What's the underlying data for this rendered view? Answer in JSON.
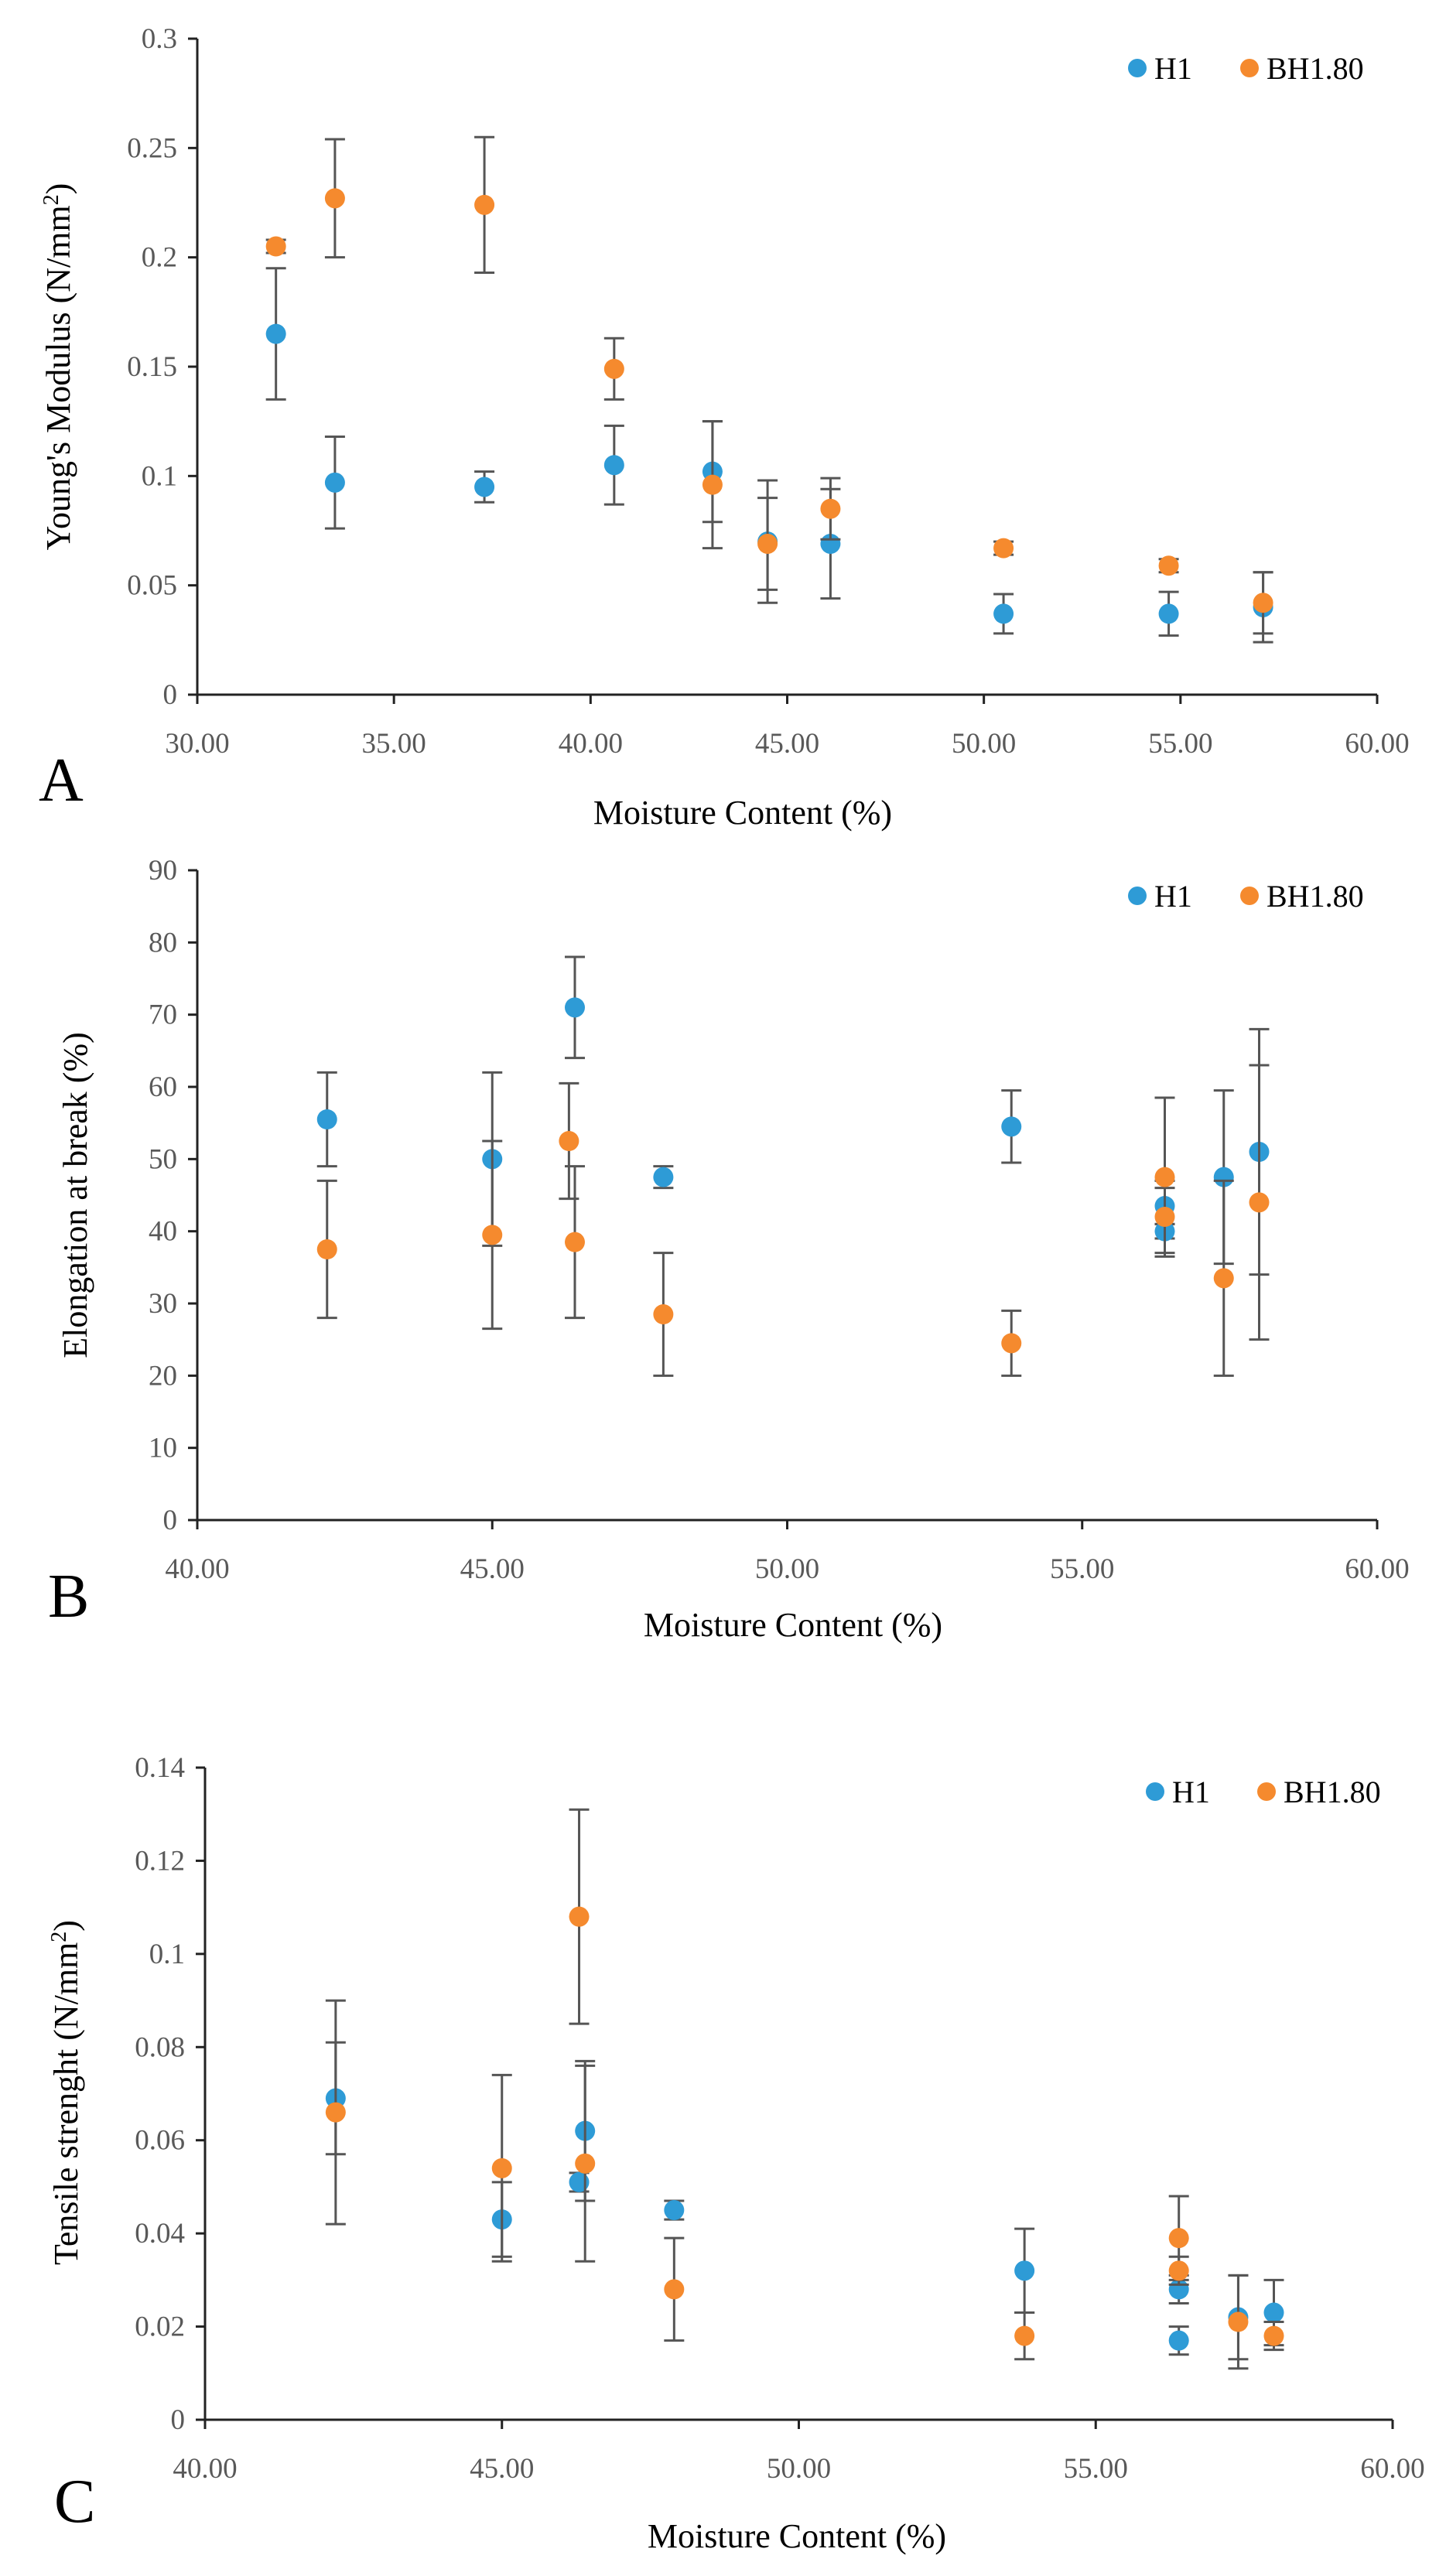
{
  "chart_data": [
    {
      "type": "scatter",
      "panel_label": "A",
      "xlabel": "Moisture Content (%)",
      "ylabel_main": "Young's Modulus (N/mm",
      "ylabel_sup": "2",
      "ylabel_close": ")",
      "xlim": [
        30,
        60
      ],
      "ylim": [
        0,
        0.3
      ],
      "xticks": [
        30,
        35,
        40,
        45,
        50,
        55,
        60
      ],
      "yticks": [
        0,
        0.05,
        0.1,
        0.15,
        0.2,
        0.25,
        0.3
      ],
      "xtick_labels": [
        "30.00",
        "35.00",
        "40.00",
        "45.00",
        "50.00",
        "55.00",
        "60.00"
      ],
      "ytick_labels": [
        "0",
        "0.05",
        "0.1",
        "0.15",
        "0.2",
        "0.25",
        "0.3"
      ],
      "legend": "top-right",
      "series": [
        {
          "name": "H1",
          "color": "#2E9BD6",
          "points": [
            {
              "x": 32.0,
              "y": 0.165,
              "err": 0.03
            },
            {
              "x": 33.5,
              "y": 0.097,
              "err": 0.021
            },
            {
              "x": 37.3,
              "y": 0.095,
              "err": 0.007
            },
            {
              "x": 40.6,
              "y": 0.105,
              "err": 0.018
            },
            {
              "x": 43.1,
              "y": 0.102,
              "err": 0.023
            },
            {
              "x": 44.5,
              "y": 0.07,
              "err": 0.028
            },
            {
              "x": 46.1,
              "y": 0.069,
              "err": 0.025
            },
            {
              "x": 50.5,
              "y": 0.037,
              "err": 0.009
            },
            {
              "x": 54.7,
              "y": 0.037,
              "err": 0.01
            },
            {
              "x": 57.1,
              "y": 0.04,
              "err": 0.016
            }
          ]
        },
        {
          "name": "BH1.80",
          "color": "#F58A2E",
          "points": [
            {
              "x": 32.0,
              "y": 0.205,
              "err": 0.003
            },
            {
              "x": 33.5,
              "y": 0.227,
              "err": 0.027
            },
            {
              "x": 37.3,
              "y": 0.224,
              "err": 0.031
            },
            {
              "x": 40.6,
              "y": 0.149,
              "err": 0.014
            },
            {
              "x": 43.1,
              "y": 0.096,
              "err": 0.029
            },
            {
              "x": 44.5,
              "y": 0.069,
              "err": 0.021
            },
            {
              "x": 46.1,
              "y": 0.085,
              "err": 0.014
            },
            {
              "x": 50.5,
              "y": 0.067,
              "err": 0.003
            },
            {
              "x": 54.7,
              "y": 0.059,
              "err": 0.003
            },
            {
              "x": 57.1,
              "y": 0.042,
              "err": 0.014
            }
          ]
        }
      ]
    },
    {
      "type": "scatter",
      "panel_label": "B",
      "xlabel": "Moisture Content (%)",
      "ylabel_main": "Elongation at break (%)",
      "ylabel_sup": "",
      "ylabel_close": "",
      "xlim": [
        40,
        60
      ],
      "ylim": [
        0,
        90
      ],
      "xticks": [
        40,
        45,
        50,
        55,
        60
      ],
      "yticks": [
        0,
        10,
        20,
        30,
        40,
        50,
        60,
        70,
        80,
        90
      ],
      "xtick_labels": [
        "40.00",
        "45.00",
        "50.00",
        "55.00",
        "60.00"
      ],
      "ytick_labels": [
        "0",
        "10",
        "20",
        "30",
        "40",
        "50",
        "60",
        "70",
        "80",
        "90"
      ],
      "legend": "top-right",
      "series": [
        {
          "name": "H1",
          "color": "#2E9BD6",
          "points": [
            {
              "x": 42.2,
              "y": 55.5,
              "err": 6.5
            },
            {
              "x": 45.0,
              "y": 50.0,
              "err": 12.0
            },
            {
              "x": 46.4,
              "y": 71.0,
              "err": 7.0
            },
            {
              "x": 47.9,
              "y": 47.5,
              "err": 1.5
            },
            {
              "x": 53.8,
              "y": 54.5,
              "err": 5.0
            },
            {
              "x": 56.4,
              "y": 43.5,
              "err": 2.5
            },
            {
              "x": 56.4,
              "y": 40.0,
              "err": 1.0
            },
            {
              "x": 57.4,
              "y": 47.5,
              "err": 12.0
            },
            {
              "x": 58.0,
              "y": 51.0,
              "err": 17.0
            }
          ]
        },
        {
          "name": "BH1.80",
          "color": "#F58A2E",
          "points": [
            {
              "x": 42.2,
              "y": 37.5,
              "err": 9.5
            },
            {
              "x": 45.0,
              "y": 39.5,
              "err": 13.0
            },
            {
              "x": 46.3,
              "y": 52.5,
              "err": 8.0
            },
            {
              "x": 46.4,
              "y": 38.5,
              "err": 10.5
            },
            {
              "x": 47.9,
              "y": 28.5,
              "err": 8.5
            },
            {
              "x": 53.8,
              "y": 24.5,
              "err": 4.5
            },
            {
              "x": 56.4,
              "y": 47.5,
              "err": 11.0
            },
            {
              "x": 56.4,
              "y": 42.0,
              "err": 5.0
            },
            {
              "x": 57.4,
              "y": 33.5,
              "err": 13.5
            },
            {
              "x": 58.0,
              "y": 44.0,
              "err": 19.0
            }
          ]
        }
      ]
    },
    {
      "type": "scatter",
      "panel_label": "C",
      "xlabel": "Moisture Content (%)",
      "ylabel_main": "Tensile strenght (N/mm",
      "ylabel_sup": "2",
      "ylabel_close": ")",
      "xlim": [
        40,
        60
      ],
      "ylim": [
        0,
        0.14
      ],
      "xticks": [
        40,
        45,
        50,
        55,
        60
      ],
      "yticks": [
        0,
        0.02,
        0.04,
        0.06,
        0.08,
        0.1,
        0.12,
        0.14
      ],
      "xtick_labels": [
        "40.00",
        "45.00",
        "50.00",
        "55.00",
        "60.00"
      ],
      "ytick_labels": [
        "0",
        "0.02",
        "0.04",
        "0.06",
        "0.08",
        "0.1",
        "0.12",
        "0.14"
      ],
      "legend": "top-right",
      "series": [
        {
          "name": "H1",
          "color": "#2E9BD6",
          "points": [
            {
              "x": 42.2,
              "y": 0.069,
              "err": 0.012
            },
            {
              "x": 45.0,
              "y": 0.043,
              "err": 0.008
            },
            {
              "x": 46.3,
              "y": 0.051,
              "err": 0.002
            },
            {
              "x": 46.4,
              "y": 0.062,
              "err": 0.015
            },
            {
              "x": 47.9,
              "y": 0.045,
              "err": 0.002
            },
            {
              "x": 53.8,
              "y": 0.032,
              "err": 0.009
            },
            {
              "x": 56.4,
              "y": 0.028,
              "err": 0.003
            },
            {
              "x": 56.4,
              "y": 0.017,
              "err": 0.003
            },
            {
              "x": 57.4,
              "y": 0.022,
              "err": 0.009
            },
            {
              "x": 58.0,
              "y": 0.023,
              "err": 0.007
            }
          ]
        },
        {
          "name": "BH1.80",
          "color": "#F58A2E",
          "points": [
            {
              "x": 42.2,
              "y": 0.066,
              "err": 0.024
            },
            {
              "x": 45.0,
              "y": 0.054,
              "err": 0.02
            },
            {
              "x": 46.3,
              "y": 0.108,
              "err": 0.023
            },
            {
              "x": 46.4,
              "y": 0.055,
              "err": 0.021
            },
            {
              "x": 47.9,
              "y": 0.028,
              "err": 0.011
            },
            {
              "x": 53.8,
              "y": 0.018,
              "err": 0.005
            },
            {
              "x": 56.4,
              "y": 0.039,
              "err": 0.009
            },
            {
              "x": 56.4,
              "y": 0.032,
              "err": 0.003
            },
            {
              "x": 57.4,
              "y": 0.021,
              "err": 0.01
            },
            {
              "x": 58.0,
              "y": 0.018,
              "err": 0.003
            }
          ]
        }
      ]
    }
  ]
}
